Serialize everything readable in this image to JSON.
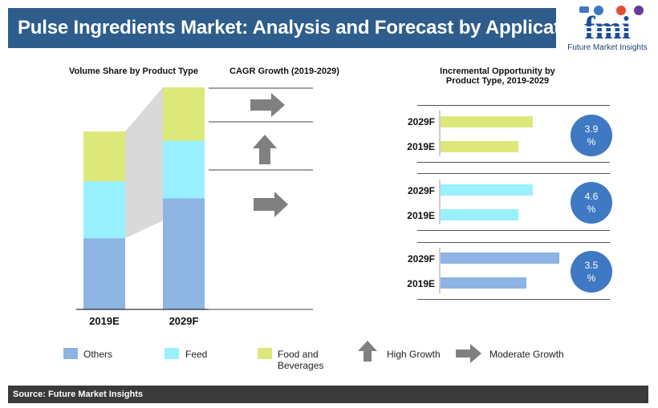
{
  "header": {
    "title": "Pulse Ingredients Market: Analysis and Forecast by Application"
  },
  "logo": {
    "text": "fmi",
    "subtitle": "Future Market Insights"
  },
  "colors": {
    "others": "#8db4e2",
    "feed": "#99f0ff",
    "food": "#dde87a",
    "arrow": "#808080",
    "circle": "#3f78c3",
    "title_bg": "#2e5d8c"
  },
  "sections": {
    "volume_share": "Volume Share by Product Type",
    "cagr": "CAGR Growth (2019-2029)",
    "incremental_line1": "Incremental Opportunity by",
    "incremental_line2": "Product Type, 2019-2029"
  },
  "chart_data": [
    {
      "type": "bar",
      "stacked": true,
      "categories": [
        "2019E",
        "2029F"
      ],
      "series": [
        {
          "name": "Others",
          "values": [
            40,
            50
          ]
        },
        {
          "name": "Feed",
          "values": [
            32,
            26
          ]
        },
        {
          "name": "Food and Beverages",
          "values": [
            28,
            24
          ]
        }
      ],
      "ylim": [
        0,
        100
      ]
    },
    {
      "type": "bar",
      "orientation": "horizontal",
      "groups": [
        {
          "series": "Food and Beverages",
          "categories": [
            "2029F",
            "2019E"
          ],
          "values": [
            115,
            97
          ],
          "cagr": "3.9 %",
          "cagr_trend": "moderate"
        },
        {
          "series": "Feed",
          "categories": [
            "2029F",
            "2019E"
          ],
          "values": [
            115,
            97
          ],
          "cagr": "4.6 %",
          "cagr_trend": "high"
        },
        {
          "series": "Others",
          "categories": [
            "2029F",
            "2019E"
          ],
          "values": [
            148,
            107
          ],
          "cagr": "3.5 %",
          "cagr_trend": "moderate"
        }
      ]
    }
  ],
  "left_categories": [
    "2019E",
    "2029F"
  ],
  "right_groups": [
    {
      "label_top": "2029F",
      "label_bottom": "2019E",
      "cagr_line1": "3.9",
      "cagr_line2": "%"
    },
    {
      "label_top": "2029F",
      "label_bottom": "2019E",
      "cagr_line1": "4.6",
      "cagr_line2": "%"
    },
    {
      "label_top": "2029F",
      "label_bottom": "2019E",
      "cagr_line1": "3.5",
      "cagr_line2": "%"
    }
  ],
  "legend": {
    "others": "Others",
    "feed": "Feed",
    "food_line1": "Food and",
    "food_line2": "Beverages",
    "high": "High Growth",
    "moderate": "Moderate Growth"
  },
  "footer": {
    "source": "Source: Future Market Insights"
  }
}
